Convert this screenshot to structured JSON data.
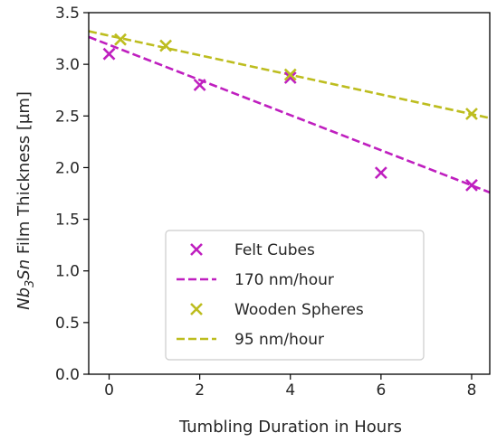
{
  "chart_data": {
    "type": "scatter",
    "title": "",
    "xlabel": "Tumbling Duration in Hours",
    "ylabel": {
      "base": "Nb",
      "sub1": "3",
      "mid": "Sn",
      "rest": " Film Thickness [µm]"
    },
    "xlim": [
      -0.45,
      8.4
    ],
    "ylim": [
      0.0,
      3.5
    ],
    "xticks": [
      0,
      2,
      4,
      6,
      8
    ],
    "yticks": [
      0.0,
      0.5,
      1.0,
      1.5,
      2.0,
      2.5,
      3.0,
      3.5
    ],
    "xtick_labels": [
      "0",
      "2",
      "4",
      "6",
      "8"
    ],
    "ytick_labels": [
      "0.0",
      "0.5",
      "1.0",
      "1.5",
      "2.0",
      "2.5",
      "3.0",
      "3.5"
    ],
    "grid": false,
    "legend_position": "lower-center",
    "series": [
      {
        "name": "Felt Cubes",
        "kind": "points",
        "marker": "x",
        "color": "#bf1fbf",
        "x": [
          0,
          2,
          4,
          6,
          8
        ],
        "y": [
          3.1,
          2.8,
          2.87,
          1.95,
          1.83
        ]
      },
      {
        "name": "170 nm/hour",
        "kind": "fit-line",
        "style": "dashed",
        "color": "#bf1fbf",
        "x": [
          -0.45,
          8.4
        ],
        "y": [
          3.265,
          1.76
        ]
      },
      {
        "name": "Wooden Spheres",
        "kind": "points",
        "marker": "x",
        "color": "#bdbd1f",
        "x": [
          0.25,
          1.25,
          4,
          8
        ],
        "y": [
          3.24,
          3.18,
          2.9,
          2.52
        ]
      },
      {
        "name": "95 nm/hour",
        "kind": "fit-line",
        "style": "dashed",
        "color": "#bdbd1f",
        "x": [
          -0.45,
          8.4
        ],
        "y": [
          3.32,
          2.48
        ]
      }
    ]
  }
}
